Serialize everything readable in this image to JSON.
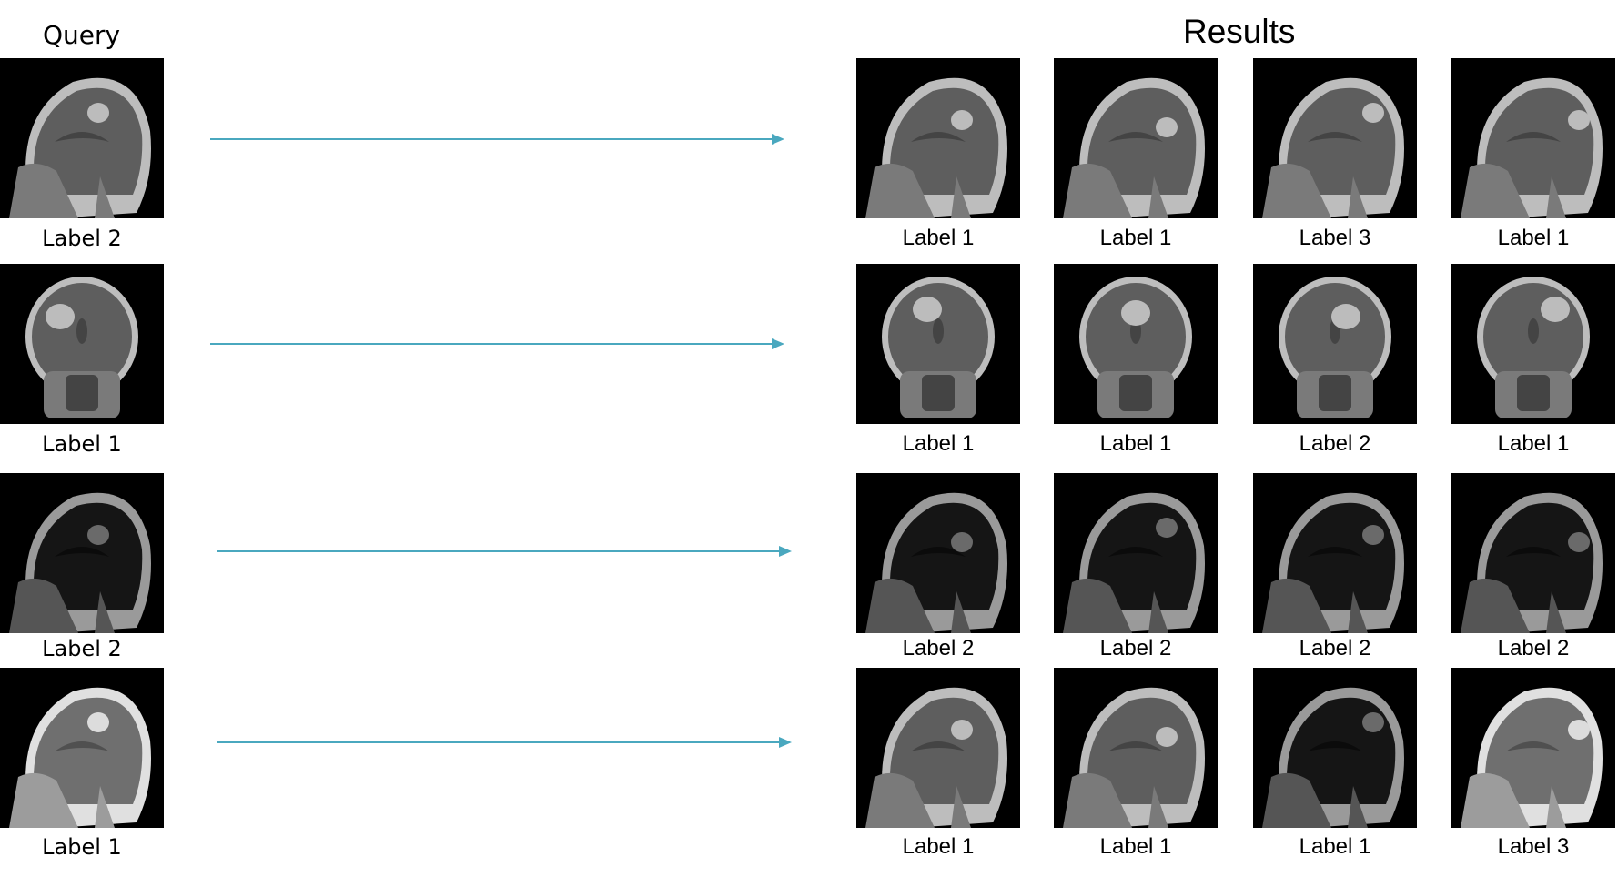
{
  "query_title": "Query",
  "results_title": "Results",
  "arrow_color": "#4aa8bf",
  "rows": [
    {
      "query": {
        "label": "Label 2",
        "view": "sagittal",
        "tone": "gray"
      },
      "results": [
        {
          "label": "Label 1",
          "view": "sagittal",
          "tone": "gray"
        },
        {
          "label": "Label 1",
          "view": "sagittal",
          "tone": "gray"
        },
        {
          "label": "Label 3",
          "view": "sagittal",
          "tone": "gray"
        },
        {
          "label": "Label 1",
          "view": "sagittal",
          "tone": "gray"
        }
      ]
    },
    {
      "query": {
        "label": "Label 1",
        "view": "coronal",
        "tone": "gray"
      },
      "results": [
        {
          "label": "Label 1",
          "view": "coronal",
          "tone": "gray"
        },
        {
          "label": "Label 1",
          "view": "coronal",
          "tone": "gray"
        },
        {
          "label": "Label 2",
          "view": "coronal",
          "tone": "gray"
        },
        {
          "label": "Label 1",
          "view": "coronal",
          "tone": "gray"
        }
      ]
    },
    {
      "query": {
        "label": "Label 2",
        "view": "sagittal",
        "tone": "dark"
      },
      "results": [
        {
          "label": "Label 2",
          "view": "sagittal",
          "tone": "dark"
        },
        {
          "label": "Label 2",
          "view": "sagittal",
          "tone": "dark"
        },
        {
          "label": "Label 2",
          "view": "sagittal",
          "tone": "dark"
        },
        {
          "label": "Label 2",
          "view": "sagittal",
          "tone": "dark"
        }
      ]
    },
    {
      "query": {
        "label": "Label 1",
        "view": "sagittal",
        "tone": "bright"
      },
      "results": [
        {
          "label": "Label 1",
          "view": "sagittal",
          "tone": "gray"
        },
        {
          "label": "Label 1",
          "view": "sagittal",
          "tone": "gray"
        },
        {
          "label": "Label 1",
          "view": "sagittal",
          "tone": "dark"
        },
        {
          "label": "Label 3",
          "view": "sagittal",
          "tone": "bright"
        }
      ]
    }
  ]
}
